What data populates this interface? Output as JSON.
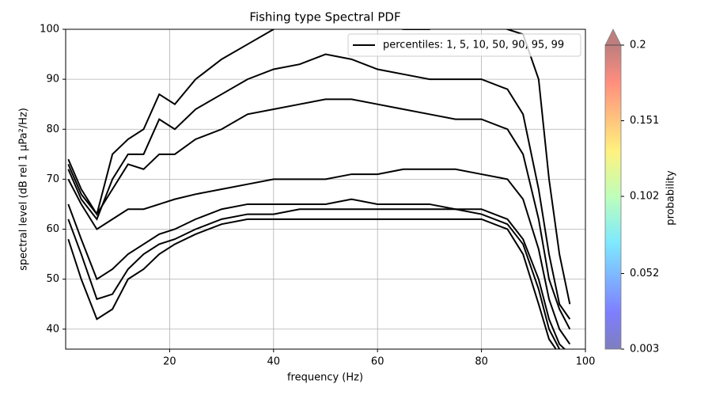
{
  "chart_data": {
    "type": "line",
    "title": "Fishing type Spectral PDF",
    "x_label": "frequency (Hz)",
    "y_label": "spectral level (dB rel 1 µPa²/Hz)",
    "xlim": [
      0,
      100
    ],
    "xticks": [
      20,
      40,
      60,
      80,
      100
    ],
    "ylim": [
      36,
      100
    ],
    "yticks": [
      40,
      50,
      60,
      70,
      80,
      90,
      100
    ],
    "grid": true,
    "legend": {
      "label": "percentiles: 1, 5, 10, 50, 90, 95, 99",
      "position": "upper right"
    },
    "x": [
      0.5,
      3,
      6,
      9,
      12,
      15,
      18,
      21,
      25,
      30,
      35,
      40,
      45,
      50,
      55,
      60,
      65,
      70,
      75,
      80,
      85,
      88,
      91,
      93,
      95,
      97
    ],
    "series": [
      {
        "color": "#000000",
        "values": [
          58,
          50,
          42,
          44,
          50,
          52,
          55,
          57,
          59,
          61,
          62,
          62,
          62,
          62,
          62,
          62,
          62,
          62,
          62,
          62,
          60,
          55,
          45,
          38,
          35,
          33
        ]
      },
      {
        "color": "#000000",
        "values": [
          62,
          55,
          46,
          47,
          52,
          55,
          57,
          58,
          60,
          62,
          63,
          63,
          64,
          64,
          64,
          64,
          64,
          64,
          64,
          63,
          61,
          57,
          48,
          40,
          36,
          34
        ]
      },
      {
        "color": "#000000",
        "values": [
          65,
          58,
          50,
          52,
          55,
          57,
          59,
          60,
          62,
          64,
          65,
          65,
          65,
          65,
          66,
          65,
          65,
          65,
          64,
          64,
          62,
          58,
          50,
          42,
          37,
          35
        ]
      },
      {
        "color": "#000000",
        "values": [
          70,
          65,
          60,
          62,
          64,
          64,
          65,
          66,
          67,
          68,
          69,
          70,
          70,
          70,
          71,
          71,
          72,
          72,
          72,
          71,
          70,
          66,
          56,
          46,
          40,
          37
        ]
      },
      {
        "color": "#000000",
        "values": [
          73,
          67,
          63,
          68,
          73,
          72,
          75,
          75,
          78,
          80,
          83,
          84,
          85,
          86,
          86,
          85,
          84,
          83,
          82,
          82,
          80,
          75,
          62,
          50,
          44,
          40
        ]
      },
      {
        "color": "#000000",
        "values": [
          72,
          66,
          62,
          70,
          75,
          75,
          82,
          80,
          84,
          87,
          90,
          92,
          93,
          95,
          94,
          92,
          91,
          90,
          90,
          90,
          88,
          83,
          68,
          55,
          45,
          42
        ]
      },
      {
        "color": "#000000",
        "values": [
          74,
          68,
          63,
          75,
          78,
          80,
          87,
          85,
          90,
          94,
          97,
          100,
          103,
          103,
          103,
          101,
          100,
          100,
          102,
          102,
          100,
          99,
          90,
          70,
          55,
          45
        ]
      }
    ],
    "colorbar": {
      "label": "probability",
      "lim": [
        0.003,
        0.2
      ],
      "ticks": [
        0.003,
        0.052,
        0.102,
        0.151,
        0.2
      ]
    }
  }
}
